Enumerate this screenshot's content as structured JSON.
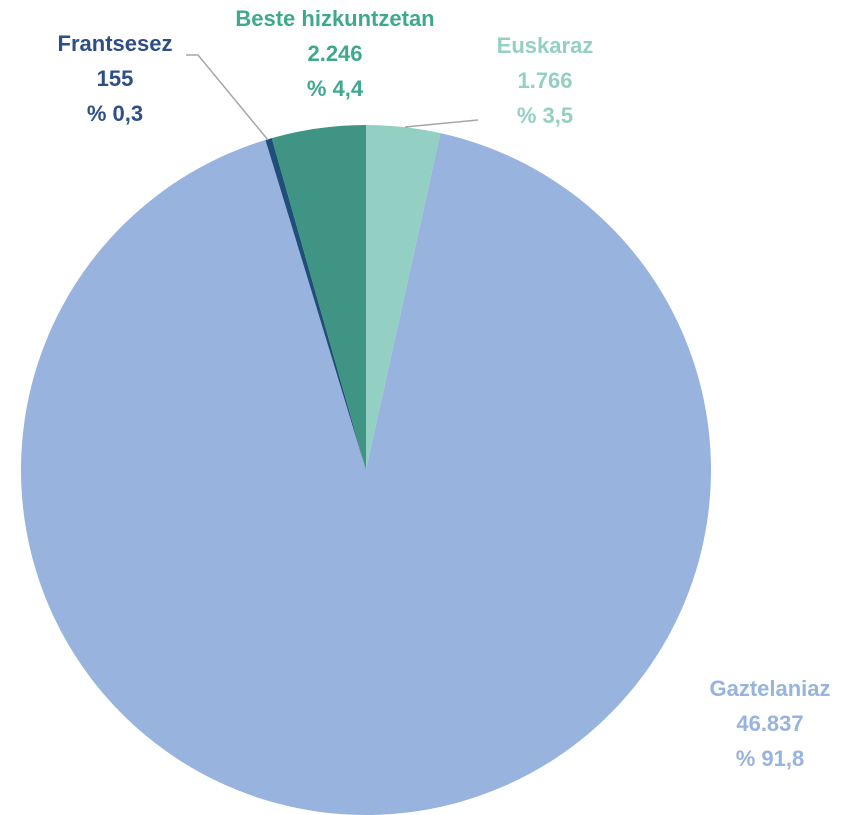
{
  "chart_data": {
    "type": "pie",
    "categories": [
      "Euskaraz",
      "Gaztelaniaz",
      "Frantsesez",
      "Beste hizkuntzetan"
    ],
    "values": [
      1766,
      46837,
      155,
      2246
    ],
    "value_labels": [
      "1.766",
      "46.837",
      "155",
      "2.246"
    ],
    "percent_labels": [
      "% 3,5",
      "% 91,8",
      "% 0,3",
      "% 4,4"
    ],
    "colors": [
      "#93d0c3",
      "#97b3de",
      "#1f4e79",
      "#3f9484"
    ],
    "label_colors": [
      "#93d0c3",
      "#97b3de",
      "#2e4f86",
      "#3fa98e"
    ]
  }
}
